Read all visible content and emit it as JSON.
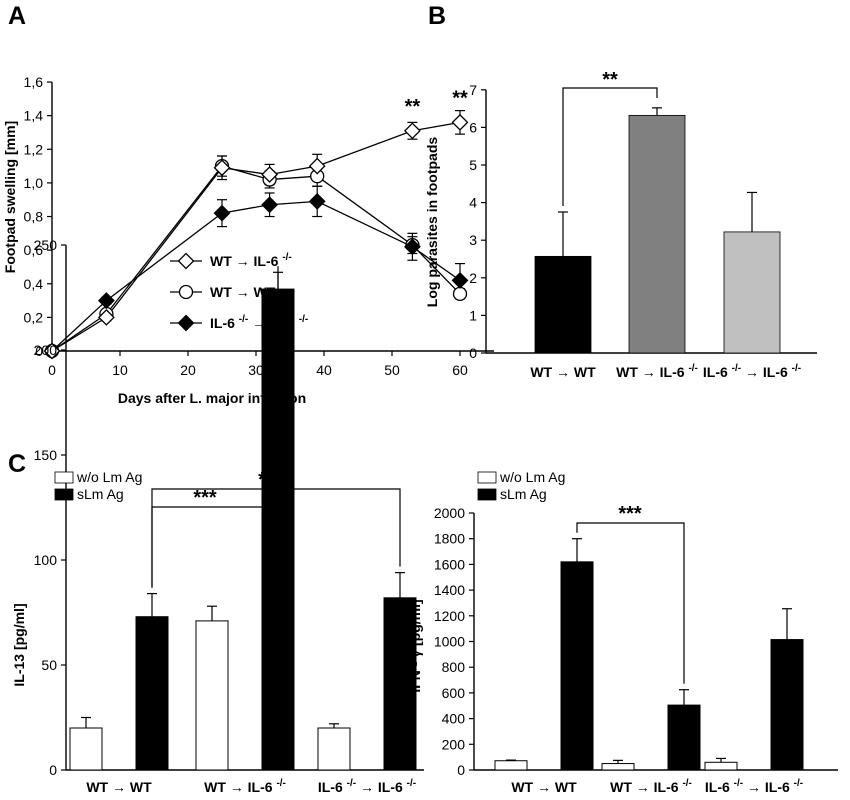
{
  "chart_data": [
    {
      "panel": "A",
      "type": "line",
      "xlabel": "Days after  L. major  infection",
      "ylabel": "Footpad swelling [mm]",
      "xlim": [
        0,
        65
      ],
      "ylim": [
        0,
        1.6
      ],
      "xticks": [
        "0",
        "10",
        "20",
        "30",
        "40",
        "50",
        "60"
      ],
      "yticks": [
        "0",
        "0,2",
        "0,4",
        "0,6",
        "0,8",
        "1,0",
        "1,2",
        "1,4",
        "1,6"
      ],
      "legend": "center",
      "significance": [
        "**",
        "**"
      ],
      "series": [
        {
          "name": "WT → IL-6 -/-",
          "marker": "open-diamond",
          "x": [
            0,
            8,
            25,
            32,
            39,
            53,
            60
          ],
          "y": [
            0,
            0.2,
            1.09,
            1.05,
            1.1,
            1.31,
            1.36
          ],
          "err": [
            0,
            0.02,
            0.07,
            0.06,
            0.07,
            0.05,
            0.07
          ]
        },
        {
          "name": "WT → WT",
          "marker": "open-circle",
          "x": [
            0,
            8,
            25,
            32,
            39,
            53,
            60
          ],
          "y": [
            0,
            0.22,
            1.1,
            1.02,
            1.04,
            0.63,
            0.34
          ],
          "err": [
            0,
            0.02,
            0.06,
            0.05,
            0.06,
            0.05,
            0.03
          ]
        },
        {
          "name": "IL-6 -/- → IL-6 -/-",
          "marker": "filled-diamond",
          "x": [
            0,
            8,
            25,
            32,
            39,
            53,
            60
          ],
          "y": [
            0,
            0.3,
            0.82,
            0.87,
            0.89,
            0.62,
            0.42
          ],
          "err": [
            0,
            0.02,
            0.08,
            0.07,
            0.09,
            0.08,
            0.1
          ]
        }
      ]
    },
    {
      "panel": "B",
      "type": "bar",
      "ylabel": "Log parasites in footpads",
      "ylim": [
        0,
        7
      ],
      "yticks": [
        "0",
        "1",
        "2",
        "3",
        "4",
        "5",
        "6",
        "7"
      ],
      "categories": [
        "WT → WT",
        "WT → IL-6 -/-",
        "IL-6 -/- → IL-6 -/-"
      ],
      "values": [
        2.57,
        6.32,
        3.22
      ],
      "errors": [
        1.18,
        0.2,
        1.05
      ],
      "colors": [
        "#000000",
        "#808080",
        "#c0c0c0"
      ],
      "significance": "**"
    },
    {
      "panel": "C",
      "type": "bar",
      "ylabel": "IL-13 [pg/ml]",
      "ylim": [
        0,
        250
      ],
      "yticks": [
        "0",
        "50",
        "100",
        "150",
        "200",
        "250"
      ],
      "categories": [
        "WT → WT",
        "WT → IL-6 -/-",
        "IL-6 -/- → IL-6 -/-"
      ],
      "legend": "top-left",
      "series": [
        {
          "name": "w/o Lm Ag",
          "color": "#ffffff",
          "values": [
            20,
            71,
            20
          ],
          "errors": [
            5,
            7,
            2
          ]
        },
        {
          "name": "sLm Ag",
          "color": "#000000",
          "values": [
            73,
            229,
            82
          ],
          "errors": [
            11,
            8,
            12
          ]
        }
      ],
      "significance": [
        "***",
        "*"
      ]
    },
    {
      "panel": "C",
      "type": "bar",
      "ylabel": "IFN - γ [pg/ml]",
      "ylim": [
        0,
        2000
      ],
      "yticks": [
        "0",
        "200",
        "400",
        "600",
        "800",
        "1000",
        "1200",
        "1400",
        "1600",
        "1800",
        "2000"
      ],
      "categories": [
        "WT → WT",
        "WT → IL-6 -/-",
        "IL-6 -/- → IL-6 -/-"
      ],
      "legend": "top-left",
      "series": [
        {
          "name": "w/o Lm Ag",
          "color": "#ffffff",
          "values": [
            72,
            50,
            60
          ],
          "errors": [
            5,
            25,
            30
          ]
        },
        {
          "name": "sLm Ag",
          "color": "#000000",
          "values": [
            1620,
            505,
            1015
          ],
          "errors": [
            180,
            120,
            240
          ]
        }
      ],
      "significance": [
        "***"
      ]
    }
  ],
  "panels": {
    "a": "A",
    "b": "B",
    "c": "C"
  }
}
